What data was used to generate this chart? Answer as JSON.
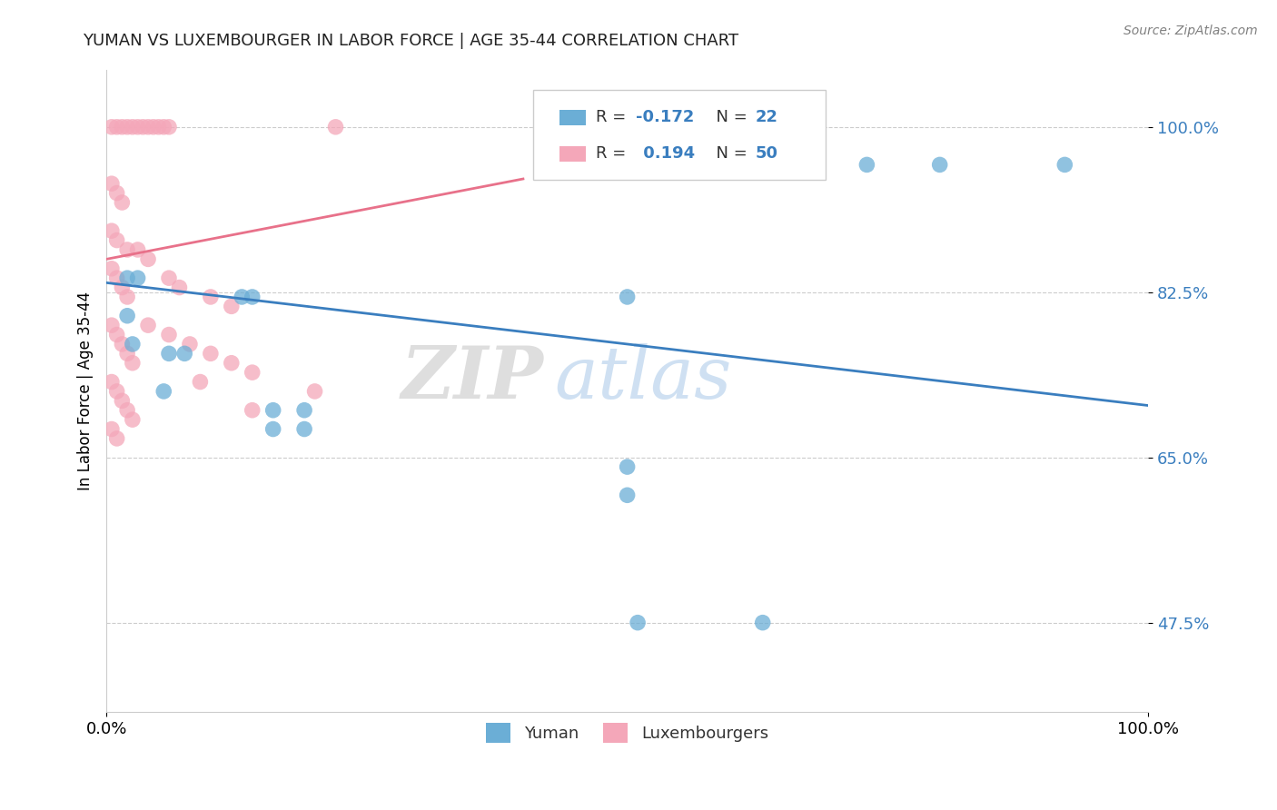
{
  "title": "YUMAN VS LUXEMBOURGER IN LABOR FORCE | AGE 35-44 CORRELATION CHART",
  "source_text": "Source: ZipAtlas.com",
  "ylabel": "In Labor Force | Age 35-44",
  "xlim": [
    0.0,
    1.0
  ],
  "ylim": [
    0.38,
    1.06
  ],
  "yticks": [
    0.475,
    0.65,
    0.825,
    1.0
  ],
  "ytick_labels": [
    "47.5%",
    "65.0%",
    "82.5%",
    "100.0%"
  ],
  "xticks": [
    0.0,
    1.0
  ],
  "xtick_labels": [
    "0.0%",
    "100.0%"
  ],
  "blue_R": -0.172,
  "blue_N": 22,
  "pink_R": 0.194,
  "pink_N": 50,
  "blue_color": "#6baed6",
  "pink_color": "#f4a7b9",
  "blue_line_color": "#3a7ebf",
  "pink_line_color": "#e8718a",
  "legend_label_blue": "Yuman",
  "legend_label_pink": "Luxembourgers",
  "blue_scatter": [
    [
      0.02,
      0.84
    ],
    [
      0.02,
      0.8
    ],
    [
      0.025,
      0.77
    ],
    [
      0.03,
      0.84
    ],
    [
      0.055,
      0.72
    ],
    [
      0.06,
      0.76
    ],
    [
      0.075,
      0.76
    ],
    [
      0.13,
      0.82
    ],
    [
      0.14,
      0.82
    ],
    [
      0.16,
      0.7
    ],
    [
      0.16,
      0.68
    ],
    [
      0.19,
      0.7
    ],
    [
      0.19,
      0.68
    ],
    [
      0.5,
      0.82
    ],
    [
      0.5,
      0.64
    ],
    [
      0.5,
      0.61
    ],
    [
      0.67,
      0.96
    ],
    [
      0.73,
      0.96
    ],
    [
      0.8,
      0.96
    ],
    [
      0.92,
      0.96
    ],
    [
      0.51,
      0.475
    ],
    [
      0.63,
      0.475
    ]
  ],
  "pink_scatter": [
    [
      0.005,
      1.0
    ],
    [
      0.01,
      1.0
    ],
    [
      0.015,
      1.0
    ],
    [
      0.02,
      1.0
    ],
    [
      0.025,
      1.0
    ],
    [
      0.03,
      1.0
    ],
    [
      0.035,
      1.0
    ],
    [
      0.04,
      1.0
    ],
    [
      0.045,
      1.0
    ],
    [
      0.05,
      1.0
    ],
    [
      0.055,
      1.0
    ],
    [
      0.06,
      1.0
    ],
    [
      0.22,
      1.0
    ],
    [
      0.005,
      0.94
    ],
    [
      0.01,
      0.93
    ],
    [
      0.015,
      0.92
    ],
    [
      0.005,
      0.89
    ],
    [
      0.01,
      0.88
    ],
    [
      0.02,
      0.87
    ],
    [
      0.005,
      0.85
    ],
    [
      0.01,
      0.84
    ],
    [
      0.015,
      0.83
    ],
    [
      0.02,
      0.82
    ],
    [
      0.03,
      0.87
    ],
    [
      0.04,
      0.86
    ],
    [
      0.06,
      0.84
    ],
    [
      0.07,
      0.83
    ],
    [
      0.1,
      0.82
    ],
    [
      0.12,
      0.81
    ],
    [
      0.005,
      0.79
    ],
    [
      0.01,
      0.78
    ],
    [
      0.015,
      0.77
    ],
    [
      0.02,
      0.76
    ],
    [
      0.025,
      0.75
    ],
    [
      0.04,
      0.79
    ],
    [
      0.06,
      0.78
    ],
    [
      0.08,
      0.77
    ],
    [
      0.1,
      0.76
    ],
    [
      0.12,
      0.75
    ],
    [
      0.14,
      0.74
    ],
    [
      0.005,
      0.73
    ],
    [
      0.01,
      0.72
    ],
    [
      0.015,
      0.71
    ],
    [
      0.02,
      0.7
    ],
    [
      0.025,
      0.69
    ],
    [
      0.09,
      0.73
    ],
    [
      0.2,
      0.72
    ],
    [
      0.005,
      0.68
    ],
    [
      0.01,
      0.67
    ],
    [
      0.14,
      0.7
    ]
  ],
  "blue_line_x0": 0.0,
  "blue_line_y0": 0.835,
  "blue_line_x1": 1.0,
  "blue_line_y1": 0.705,
  "pink_line_x0": 0.0,
  "pink_line_y0": 0.86,
  "pink_line_x1": 0.4,
  "pink_line_y1": 0.945
}
